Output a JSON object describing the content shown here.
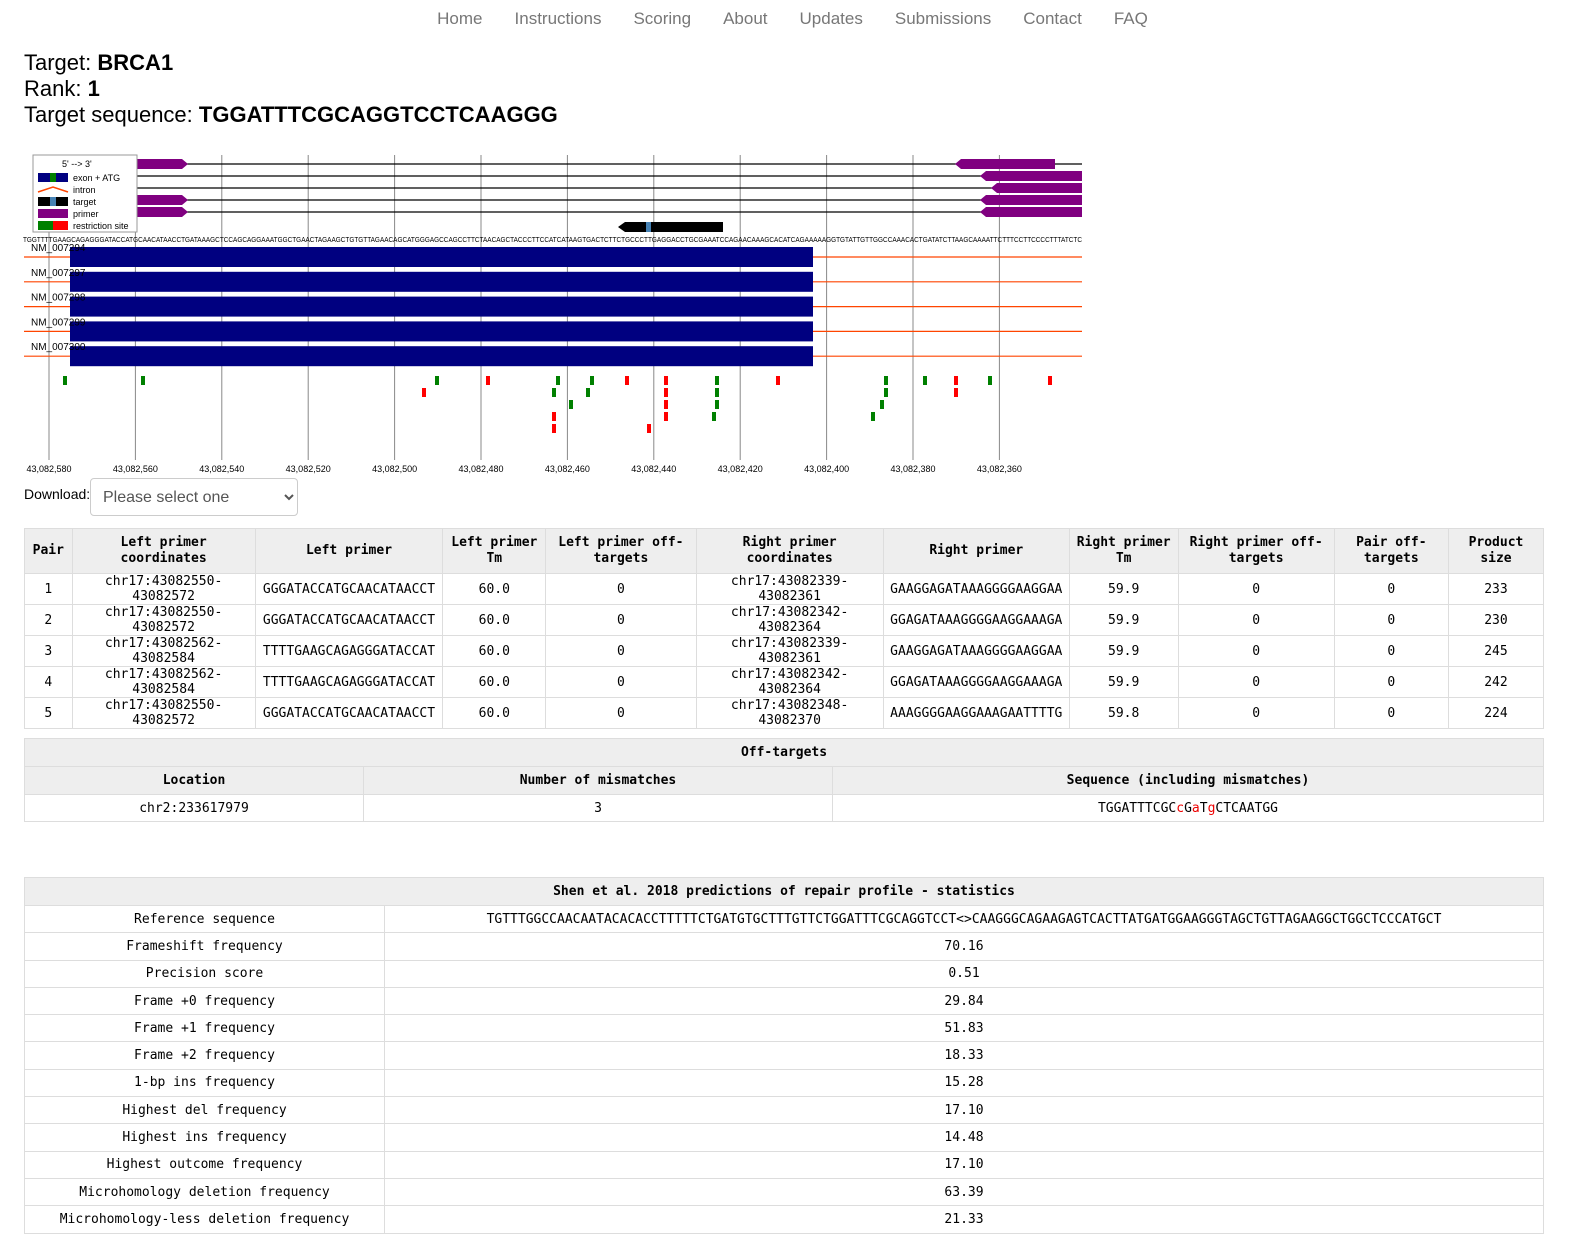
{
  "nav": [
    "Home",
    "Instructions",
    "Scoring",
    "About",
    "Updates",
    "Submissions",
    "Contact",
    "FAQ"
  ],
  "target": {
    "target_label": "Target:",
    "target_value": "BRCA1",
    "rank_label": "Rank:",
    "rank_value": "1",
    "seq_label": "Target sequence:",
    "seq_value": "TGGATTTCGCAGGTCCTCAAGGG"
  },
  "legend": {
    "title": "5' --> 3'",
    "items": [
      "exon + ATG",
      "intron",
      "target",
      "primer",
      "restriction site"
    ]
  },
  "genomic_sequence": "TGGTTTTGAAGCAGAGGGATACCATGCAACATAACCTGATAAAGCTCCAGCAGGAAATGGCTGAACTAGAAGCTGTGTTAGAACAGCATGGGAGCCAGCCTTCTAACAGCTACCCTTCCATCATAAGTGACTCTTCTGCCCTTGAGGACCTGCGAAATCCAGAACAAAGCACATCAGAAAAAGGTGTATTGTTGGCCAAACACTGATATCTTAAGCAAAATTCTTTCCTTCCCCTTTATCTC",
  "transcripts": [
    "NM_007294",
    "NM_007297",
    "NM_007298",
    "NM_007299",
    "NM_007300"
  ],
  "axis_ticks": [
    "43,082,580",
    "43,082,560",
    "43,082,540",
    "43,082,520",
    "43,082,500",
    "43,082,480",
    "43,082,460",
    "43,082,440",
    "43,082,420",
    "43,082,400",
    "43,082,380",
    "43,082,360"
  ],
  "download": {
    "label": "Download:",
    "placeholder": "Please select one"
  },
  "pairs": {
    "headers": [
      "Pair",
      "Left primer coordinates",
      "Left primer",
      "Left primer Tm",
      "Left primer off-targets",
      "Right primer coordinates",
      "Right primer",
      "Right primer Tm",
      "Right primer off-targets",
      "Pair off-targets",
      "Product size"
    ],
    "rows": [
      [
        "1",
        "chr17:43082550-43082572",
        "GGGATACCATGCAACATAACCT",
        "60.0",
        "0",
        "chr17:43082339-43082361",
        "GAAGGAGATAAAGGGGAAGGAA",
        "59.9",
        "0",
        "0",
        "233"
      ],
      [
        "2",
        "chr17:43082550-43082572",
        "GGGATACCATGCAACATAACCT",
        "60.0",
        "0",
        "chr17:43082342-43082364",
        "GGAGATAAAGGGGAAGGAAAGA",
        "59.9",
        "0",
        "0",
        "230"
      ],
      [
        "3",
        "chr17:43082562-43082584",
        "TTTTGAAGCAGAGGGATACCAT",
        "60.0",
        "0",
        "chr17:43082339-43082361",
        "GAAGGAGATAAAGGGGAAGGAA",
        "59.9",
        "0",
        "0",
        "245"
      ],
      [
        "4",
        "chr17:43082562-43082584",
        "TTTTGAAGCAGAGGGATACCAT",
        "60.0",
        "0",
        "chr17:43082342-43082364",
        "GGAGATAAAGGGGAAGGAAAGA",
        "59.9",
        "0",
        "0",
        "242"
      ],
      [
        "5",
        "chr17:43082550-43082572",
        "GGGATACCATGCAACATAACCT",
        "60.0",
        "0",
        "chr17:43082348-43082370",
        "AAAGGGGAAGGAAAGAATTTTG",
        "59.8",
        "0",
        "0",
        "224"
      ]
    ]
  },
  "offtargets": {
    "title": "Off-targets",
    "headers": [
      "Location",
      "Number of mismatches",
      "Sequence (including mismatches)"
    ],
    "rows": [
      {
        "location": "chr2:233617979",
        "mismatches": "3",
        "seq_parts": [
          {
            "t": "TGGATTTCGC",
            "m": false
          },
          {
            "t": "c",
            "m": true
          },
          {
            "t": "G",
            "m": false
          },
          {
            "t": "a",
            "m": true
          },
          {
            "t": "T",
            "m": false
          },
          {
            "t": "g",
            "m": true
          },
          {
            "t": "CTCAATGG",
            "m": false
          }
        ]
      }
    ]
  },
  "shen": {
    "title": "Shen et al. 2018 predictions of repair profile - statistics",
    "rows": [
      [
        "Reference sequence",
        "TGTTTGGCCAACAATACACACCTTTTTCTGATGTGCTTTGTTCTGGATTTCGCAGGTCCT<>CAAGGGCAGAAGAGTCACTTATGATGGAAGGGTAGCTGTTAGAAGGCTGGCTCCCATGCT"
      ],
      [
        "Frameshift frequency",
        "70.16"
      ],
      [
        "Precision score",
        "0.51"
      ],
      [
        "Frame +0 frequency",
        "29.84"
      ],
      [
        "Frame +1 frequency",
        "51.83"
      ],
      [
        "Frame +2 frequency",
        "18.33"
      ],
      [
        "1-bp ins frequency",
        "15.28"
      ],
      [
        "Highest del frequency",
        "17.10"
      ],
      [
        "Highest ins frequency",
        "14.48"
      ],
      [
        "Highest outcome frequency",
        "17.10"
      ],
      [
        "Microhomology deletion frequency",
        "63.39"
      ],
      [
        "Microhomology-less deletion frequency",
        "21.33"
      ]
    ]
  },
  "colors": {
    "exon": "#000080",
    "intron": "#ff4500",
    "primer": "#800080",
    "site_green": "#008000",
    "site_red": "#ff0000",
    "target_blue": "#4682b4"
  }
}
